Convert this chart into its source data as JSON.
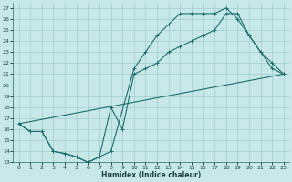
{
  "xlabel": "Humidex (Indice chaleur)",
  "ylabel": "",
  "bg_color": "#c8e8e8",
  "line_color": "#1a6e6e",
  "grid_color": "#a0cccc",
  "xlim": [
    -0.5,
    23.5
  ],
  "ylim": [
    13,
    27.5
  ],
  "yticks": [
    13,
    14,
    15,
    16,
    17,
    18,
    19,
    20,
    21,
    22,
    23,
    24,
    25,
    26,
    27
  ],
  "xticks": [
    0,
    1,
    2,
    3,
    4,
    5,
    6,
    7,
    8,
    9,
    10,
    11,
    12,
    13,
    14,
    15,
    16,
    17,
    18,
    19,
    20,
    21,
    22,
    23
  ],
  "line1_x": [
    0,
    1,
    2,
    3,
    4,
    5,
    6,
    7,
    8,
    10,
    11,
    12,
    13,
    14,
    15,
    16,
    17,
    18,
    19,
    20,
    21,
    22,
    23
  ],
  "line1_y": [
    16.5,
    15.8,
    15.8,
    14.0,
    13.8,
    13.5,
    13.0,
    13.5,
    14.0,
    21.5,
    23.0,
    24.5,
    25.5,
    26.5,
    26.5,
    26.5,
    26.5,
    27.0,
    26.0,
    24.5,
    23.0,
    21.5,
    21.0
  ],
  "line2_x": [
    0,
    1,
    2,
    3,
    4,
    5,
    6,
    7,
    8,
    9,
    10,
    11,
    12,
    13,
    14,
    15,
    16,
    17,
    18,
    19,
    20,
    21,
    22,
    23
  ],
  "line2_y": [
    16.5,
    15.8,
    15.8,
    14.0,
    13.8,
    13.5,
    13.0,
    13.5,
    18.0,
    16.0,
    21.0,
    21.5,
    22.0,
    23.0,
    23.5,
    24.0,
    24.5,
    25.0,
    26.5,
    26.5,
    24.5,
    23.0,
    22.0,
    21.0
  ],
  "line3_x": [
    0,
    23
  ],
  "line3_y": [
    16.5,
    21.0
  ]
}
